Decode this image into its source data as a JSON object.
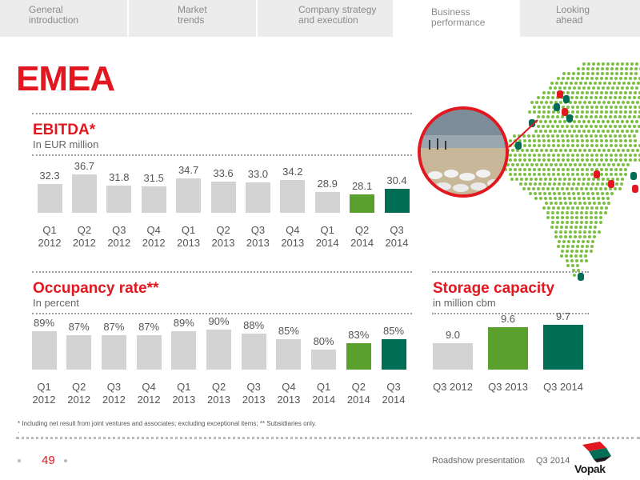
{
  "nav": {
    "tabs": [
      {
        "label": "General\nintroduction",
        "active": false
      },
      {
        "label": "Market\ntrends",
        "active": false
      },
      {
        "label": "Company strategy\nand execution",
        "active": false
      },
      {
        "label": "Business\nperformance",
        "active": true
      },
      {
        "label": "Looking\nahead",
        "active": false
      }
    ]
  },
  "region_title": "EMEA",
  "ebitda": {
    "title": "EBITDA*",
    "subtitle": "In EUR million"
  },
  "occupancy": {
    "title": "Occupancy rate**",
    "subtitle": "In percent"
  },
  "storage": {
    "title": "Storage capacity",
    "subtitle": "in million cbm"
  },
  "chart_data": [
    {
      "type": "bar",
      "id": "ebitda",
      "categories": [
        "Q1\n2012",
        "Q2\n2012",
        "Q3\n2012",
        "Q4\n2012",
        "Q1\n2013",
        "Q2\n2013",
        "Q3\n2013",
        "Q4\n2013",
        "Q1\n2014",
        "Q2\n2014",
        "Q3\n2014"
      ],
      "values": [
        32.3,
        36.7,
        31.8,
        31.5,
        34.7,
        33.6,
        33.0,
        34.2,
        28.9,
        28.1,
        30.4
      ],
      "value_labels": [
        "32.3",
        "36.7",
        "31.8",
        "31.5",
        "34.7",
        "33.6",
        "33.0",
        "34.2",
        "28.9",
        "28.1",
        "30.4"
      ],
      "colors": [
        "#d3d3d3",
        "#d3d3d3",
        "#d3d3d3",
        "#d3d3d3",
        "#d3d3d3",
        "#d3d3d3",
        "#d3d3d3",
        "#d3d3d3",
        "#d3d3d3",
        "#5aa02c",
        "#006e54"
      ],
      "ylim": [
        0,
        40
      ]
    },
    {
      "type": "bar",
      "id": "occupancy",
      "categories": [
        "Q1\n2012",
        "Q2\n2012",
        "Q3\n2012",
        "Q4\n2012",
        "Q1\n2013",
        "Q2\n2013",
        "Q3\n2013",
        "Q4\n2013",
        "Q1\n2014",
        "Q2\n2014",
        "Q3\n2014"
      ],
      "values": [
        89,
        87,
        87,
        87,
        89,
        90,
        88,
        85,
        80,
        83,
        85
      ],
      "value_labels": [
        "89%",
        "87%",
        "87%",
        "87%",
        "89%",
        "90%",
        "88%",
        "85%",
        "80%",
        "83%",
        "85%"
      ],
      "colors": [
        "#d3d3d3",
        "#d3d3d3",
        "#d3d3d3",
        "#d3d3d3",
        "#d3d3d3",
        "#d3d3d3",
        "#d3d3d3",
        "#d3d3d3",
        "#d3d3d3",
        "#5aa02c",
        "#006e54"
      ],
      "ylim": [
        0,
        100
      ]
    },
    {
      "type": "bar",
      "id": "storage",
      "categories": [
        "Q3 2012",
        "Q3 2013",
        "Q3 2014"
      ],
      "values": [
        9.0,
        9.6,
        9.7
      ],
      "value_labels": [
        "9.0",
        "9.6",
        "9.7"
      ],
      "colors": [
        "#d3d3d3",
        "#5aa02c",
        "#006e54"
      ],
      "ylim": [
        0,
        10
      ]
    }
  ],
  "footnote": "* Including net result from joint ventures and associates; excluding exceptional items; ** Subsidiaries only.",
  "footnote_mark": "·",
  "footer": {
    "page_number": "49",
    "presentation": "Roadshow presentation",
    "period": "Q3 2014",
    "logo_text": "Vopak"
  },
  "colors": {
    "accent_red": "#e2171f",
    "green": "#5aa02c",
    "dark_green": "#006e54",
    "grey_bar": "#d3d3d3",
    "map_dot": "#7bc043"
  }
}
